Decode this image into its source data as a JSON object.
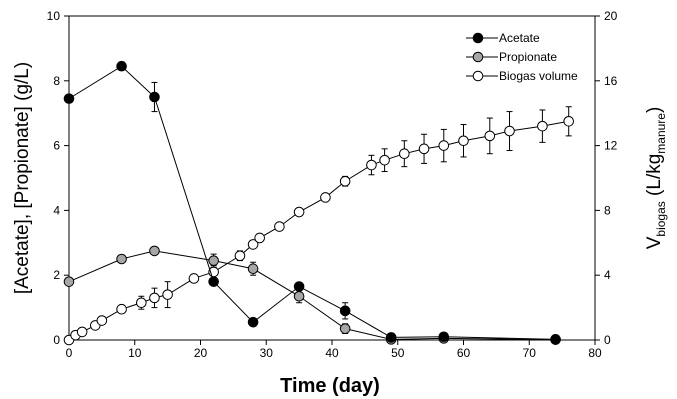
{
  "chart_data": {
    "type": "scatter",
    "xlabel": "Time (day)",
    "ylabel_left": "[Acetate], [Propionate] (g/L)",
    "ylabel_right": {
      "main": "V",
      "sub1": "biogas",
      "mid": " (L/kg",
      "sub2": "manure",
      "end": ")"
    },
    "xlim": [
      0,
      80
    ],
    "ylim_left": [
      0,
      10
    ],
    "ylim_right": [
      0,
      20
    ],
    "x_ticks": [
      0,
      10,
      20,
      30,
      40,
      50,
      60,
      70,
      80
    ],
    "y_ticks_left": [
      0,
      2,
      4,
      6,
      8,
      10
    ],
    "y_ticks_right": [
      0,
      4,
      8,
      12,
      16,
      20
    ],
    "grid": false,
    "legend_position": "top-right",
    "series": [
      {
        "name": "Acetate",
        "axis": "left",
        "marker": "filled-black",
        "x": [
          0,
          8,
          13,
          22,
          28,
          35,
          42,
          49,
          57,
          74
        ],
        "y": [
          7.45,
          8.45,
          7.5,
          1.8,
          0.55,
          1.65,
          0.9,
          0.08,
          0.1,
          0.02
        ],
        "err": [
          0,
          0,
          0.45,
          0,
          0,
          0,
          0.25,
          0,
          0,
          0
        ]
      },
      {
        "name": "Propionate",
        "axis": "left",
        "marker": "filled-gray",
        "x": [
          0,
          8,
          13,
          22,
          28,
          35,
          42,
          49,
          57,
          74
        ],
        "y": [
          1.8,
          2.5,
          2.75,
          2.45,
          2.2,
          1.35,
          0.35,
          0.02,
          0.05,
          0.01
        ],
        "err": [
          0,
          0,
          0,
          0.2,
          0.2,
          0.2,
          0.15,
          0,
          0,
          0
        ]
      },
      {
        "name": "Biogas volume",
        "axis": "right",
        "marker": "open",
        "x": [
          0,
          1,
          2,
          4,
          5,
          8,
          11,
          13,
          15,
          19,
          22,
          26,
          28,
          29,
          32,
          35,
          39,
          42,
          46,
          48,
          51,
          54,
          57,
          60,
          64,
          67,
          72,
          76
        ],
        "y": [
          0,
          0.3,
          0.5,
          0.9,
          1.2,
          1.9,
          2.3,
          2.6,
          2.8,
          3.8,
          4.2,
          5.2,
          5.9,
          6.3,
          7.0,
          7.9,
          8.8,
          9.8,
          10.8,
          11.1,
          11.5,
          11.8,
          12.0,
          12.3,
          12.6,
          12.9,
          13.2,
          13.5
        ],
        "err": [
          0,
          0,
          0,
          0,
          0,
          0,
          0.4,
          0.6,
          0.8,
          0,
          0.4,
          0.3,
          0,
          0,
          0,
          0,
          0,
          0.3,
          0.6,
          0.7,
          0.8,
          0.9,
          1.0,
          1.0,
          1.1,
          1.2,
          1.0,
          0.9
        ]
      }
    ]
  }
}
